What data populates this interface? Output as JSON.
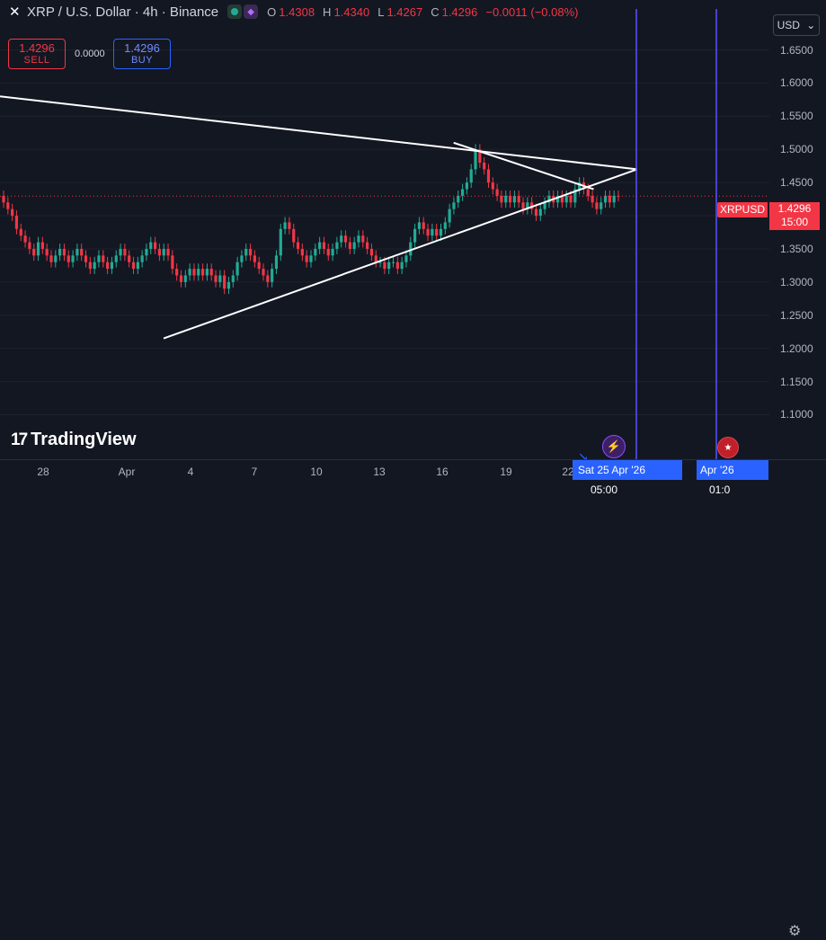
{
  "header": {
    "close_icon": "close-icon",
    "symbol_title": "XRP / U.S. Dollar · 4h · Binance",
    "ohlc": [
      {
        "key": "O",
        "value": "1.4308"
      },
      {
        "key": "H",
        "value": "1.4340"
      },
      {
        "key": "L",
        "value": "1.4267"
      },
      {
        "key": "C",
        "value": "1.4296"
      }
    ],
    "change": "−0.0011 (−0.08%)"
  },
  "trade": {
    "sell_price": "1.4296",
    "sell_label": "SELL",
    "spread": "0.0000",
    "buy_price": "1.4296",
    "buy_label": "BUY"
  },
  "currency": "USD",
  "price_scale": {
    "ticks": [
      "1.6500",
      "1.6000",
      "1.5500",
      "1.5000",
      "1.4500",
      "1.4000",
      "1.3500",
      "1.3000",
      "1.2500",
      "1.2000",
      "1.1500",
      "1.1000"
    ],
    "tick_values": [
      1.65,
      1.6,
      1.55,
      1.5,
      1.45,
      1.4,
      1.35,
      1.3,
      1.25,
      1.2,
      1.15,
      1.1
    ],
    "current_symbol": "XRPUSD",
    "current_price": "1.4296",
    "countdown": "15:00"
  },
  "time_scale": {
    "ticks": [
      "28",
      "Apr",
      "4",
      "7",
      "10",
      "13",
      "16",
      "19",
      "22"
    ],
    "date_label": "Sat 25 Apr '26",
    "time_label": "05:00",
    "date_label_2": "Apr '26",
    "time_label_2": "01:0"
  },
  "logo_text": "TradingView",
  "colors": {
    "up": "#22ab94",
    "down": "#f23645",
    "accent": "#2962ff",
    "background": "#131722"
  },
  "chart_data": {
    "type": "candlestick",
    "symbol": "XRPUSD",
    "interval": "4h",
    "ylim": [
      1.06,
      1.69
    ],
    "close_series": [
      1.42,
      1.41,
      1.4,
      1.38,
      1.37,
      1.36,
      1.35,
      1.34,
      1.36,
      1.35,
      1.34,
      1.33,
      1.34,
      1.35,
      1.34,
      1.33,
      1.34,
      1.35,
      1.34,
      1.33,
      1.32,
      1.33,
      1.34,
      1.33,
      1.32,
      1.33,
      1.34,
      1.35,
      1.34,
      1.33,
      1.32,
      1.33,
      1.34,
      1.35,
      1.36,
      1.35,
      1.34,
      1.35,
      1.34,
      1.32,
      1.31,
      1.3,
      1.31,
      1.32,
      1.31,
      1.32,
      1.31,
      1.32,
      1.31,
      1.3,
      1.31,
      1.29,
      1.3,
      1.31,
      1.33,
      1.34,
      1.35,
      1.34,
      1.33,
      1.32,
      1.31,
      1.3,
      1.32,
      1.34,
      1.38,
      1.39,
      1.38,
      1.36,
      1.35,
      1.34,
      1.33,
      1.34,
      1.35,
      1.36,
      1.35,
      1.34,
      1.35,
      1.36,
      1.37,
      1.36,
      1.35,
      1.36,
      1.37,
      1.36,
      1.35,
      1.34,
      1.33,
      1.33,
      1.32,
      1.33,
      1.33,
      1.32,
      1.33,
      1.34,
      1.36,
      1.38,
      1.39,
      1.38,
      1.37,
      1.38,
      1.37,
      1.38,
      1.39,
      1.41,
      1.42,
      1.43,
      1.44,
      1.45,
      1.47,
      1.5,
      1.48,
      1.47,
      1.45,
      1.44,
      1.43,
      1.42,
      1.43,
      1.42,
      1.43,
      1.42,
      1.41,
      1.42,
      1.41,
      1.4,
      1.41,
      1.42,
      1.43,
      1.42,
      1.43,
      1.42,
      1.43,
      1.42,
      1.44,
      1.45,
      1.44,
      1.43,
      1.42,
      1.41,
      1.42,
      1.43,
      1.42,
      1.43,
      1.4296
    ],
    "trendlines": [
      {
        "name": "descending-resistance",
        "from": [
          0,
          1.58
        ],
        "to": [
          190,
          1.47
        ]
      },
      {
        "name": "ascending-support",
        "from": [
          48,
          1.215
        ],
        "to": [
          190,
          1.47
        ]
      },
      {
        "name": "inner-resistance",
        "from": [
          135,
          1.51
        ],
        "to": [
          177,
          1.44
        ]
      }
    ],
    "vertical_markers": [
      "Sat 25 Apr '26 05:00",
      "Apr '26 01:0"
    ]
  }
}
